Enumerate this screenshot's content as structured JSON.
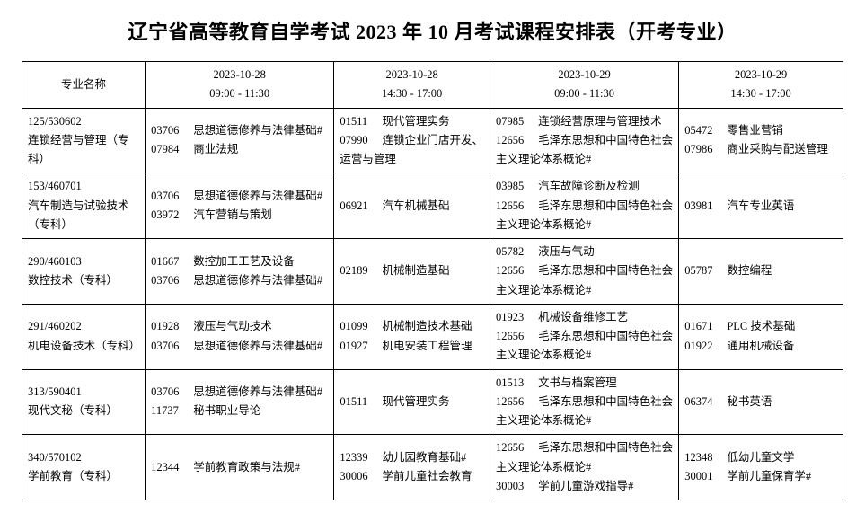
{
  "title": "辽宁省高等教育自学考试 2023 年 10 月考试课程安排表（开考专业）",
  "columns": {
    "major": "专业名称",
    "s1_date": "2023-10-28",
    "s1_time": "09:00 - 11:30",
    "s2_date": "2023-10-28",
    "s2_time": "14:30 - 17:00",
    "s3_date": "2023-10-29",
    "s3_time": "09:00 - 11:30",
    "s4_date": "2023-10-29",
    "s4_time": "14:30 - 17:00"
  },
  "rows": [
    {
      "major_code": "125/530602",
      "major_name": "连锁经营与管理（专科）",
      "s1": [
        {
          "code": "03706",
          "name": "思想道德修养与法律基础#"
        },
        {
          "code": "07984",
          "name": "商业法规"
        }
      ],
      "s2": [
        {
          "code": "01511",
          "name": "现代管理实务"
        },
        {
          "code": "07990",
          "name": "连锁企业门店开发、运营与管理"
        }
      ],
      "s3": [
        {
          "code": "07985",
          "name": "连锁经营原理与管理技术"
        },
        {
          "code": "12656",
          "name": "毛泽东思想和中国特色社会主义理论体系概论#"
        }
      ],
      "s4": [
        {
          "code": "05472",
          "name": "零售业营销"
        },
        {
          "code": "07986",
          "name": "商业采购与配送管理"
        }
      ]
    },
    {
      "major_code": "153/460701",
      "major_name": "汽车制造与试验技术（专科）",
      "s1": [
        {
          "code": "03706",
          "name": "思想道德修养与法律基础#"
        },
        {
          "code": "03972",
          "name": "汽车营销与策划"
        }
      ],
      "s2": [
        {
          "code": "06921",
          "name": "汽车机械基础"
        }
      ],
      "s3": [
        {
          "code": "03985",
          "name": "汽车故障诊断及检测"
        },
        {
          "code": "12656",
          "name": "毛泽东思想和中国特色社会主义理论体系概论#"
        }
      ],
      "s4": [
        {
          "code": "03981",
          "name": "汽车专业英语"
        }
      ]
    },
    {
      "major_code": "290/460103",
      "major_name": "数控技术（专科）",
      "s1": [
        {
          "code": "01667",
          "name": "数控加工工艺及设备"
        },
        {
          "code": "03706",
          "name": "思想道德修养与法律基础#"
        }
      ],
      "s2": [
        {
          "code": "02189",
          "name": "机械制造基础"
        }
      ],
      "s3": [
        {
          "code": "05782",
          "name": "液压与气动"
        },
        {
          "code": "12656",
          "name": "毛泽东思想和中国特色社会主义理论体系概论#"
        }
      ],
      "s4": [
        {
          "code": "05787",
          "name": "数控编程"
        }
      ]
    },
    {
      "major_code": "291/460202",
      "major_name": "机电设备技术（专科）",
      "s1": [
        {
          "code": "01928",
          "name": "液压与气动技术"
        },
        {
          "code": "03706",
          "name": "思想道德修养与法律基础#"
        }
      ],
      "s2": [
        {
          "code": "01099",
          "name": "机械制造技术基础"
        },
        {
          "code": "01927",
          "name": "机电安装工程管理"
        }
      ],
      "s3": [
        {
          "code": "01923",
          "name": "机械设备维修工艺"
        },
        {
          "code": "12656",
          "name": "毛泽东思想和中国特色社会主义理论体系概论#"
        }
      ],
      "s4": [
        {
          "code": "01671",
          "name": "PLC 技术基础"
        },
        {
          "code": "01922",
          "name": "通用机械设备"
        }
      ]
    },
    {
      "major_code": "313/590401",
      "major_name": "现代文秘（专科）",
      "s1": [
        {
          "code": "03706",
          "name": "思想道德修养与法律基础#"
        },
        {
          "code": "11737",
          "name": "秘书职业导论"
        }
      ],
      "s2": [
        {
          "code": "01511",
          "name": "现代管理实务"
        }
      ],
      "s3": [
        {
          "code": "01513",
          "name": "文书与档案管理"
        },
        {
          "code": "12656",
          "name": "毛泽东思想和中国特色社会主义理论体系概论#"
        }
      ],
      "s4": [
        {
          "code": "06374",
          "name": "秘书英语"
        }
      ]
    },
    {
      "major_code": "340/570102",
      "major_name": "学前教育（专科）",
      "s1": [
        {
          "code": "12344",
          "name": "学前教育政策与法规#"
        }
      ],
      "s2": [
        {
          "code": "12339",
          "name": "幼儿园教育基础#"
        },
        {
          "code": "30006",
          "name": "学前儿童社会教育"
        }
      ],
      "s3": [
        {
          "code": "12656",
          "name": "毛泽东思想和中国特色社会主义理论体系概论#"
        },
        {
          "code": "30003",
          "name": "学前儿童游戏指导#"
        }
      ],
      "s4": [
        {
          "code": "12348",
          "name": "低幼儿童文学"
        },
        {
          "code": "30001",
          "name": "学前儿童保育学#"
        }
      ]
    }
  ]
}
